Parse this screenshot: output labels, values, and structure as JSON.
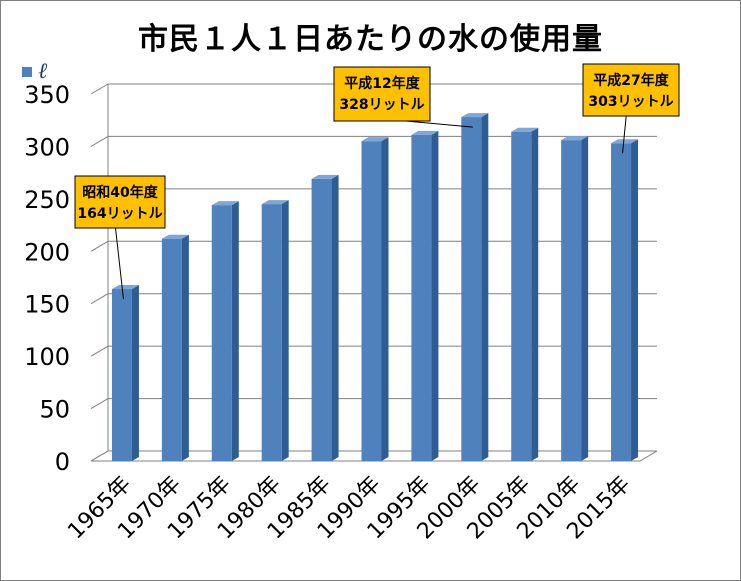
{
  "chart_data": {
    "type": "bar",
    "title": "市民１人１日あたりの水の使用量",
    "unit_label": "ℓ",
    "categories": [
      "1965年",
      "1970年",
      "1975年",
      "1980年",
      "1985年",
      "1990年",
      "1995年",
      "2000年",
      "2005年",
      "2010年",
      "2015年"
    ],
    "values": [
      164,
      212,
      244,
      245,
      269,
      305,
      311,
      328,
      314,
      306,
      303
    ],
    "ylim": [
      0,
      350
    ],
    "yticks": [
      "0",
      "50",
      "100",
      "150",
      "200",
      "250",
      "300",
      "350"
    ],
    "grid": true,
    "bar_color": "#4f81bd",
    "annotations": [
      {
        "category_index": 0,
        "line1": "昭和40年度",
        "line2": "164リットル"
      },
      {
        "category_index": 7,
        "line1": "平成12年度",
        "line2": "328リットル"
      },
      {
        "category_index": 10,
        "line1": "平成27年度",
        "line2": "303リットル"
      }
    ],
    "callout_color": "#ffc000"
  }
}
